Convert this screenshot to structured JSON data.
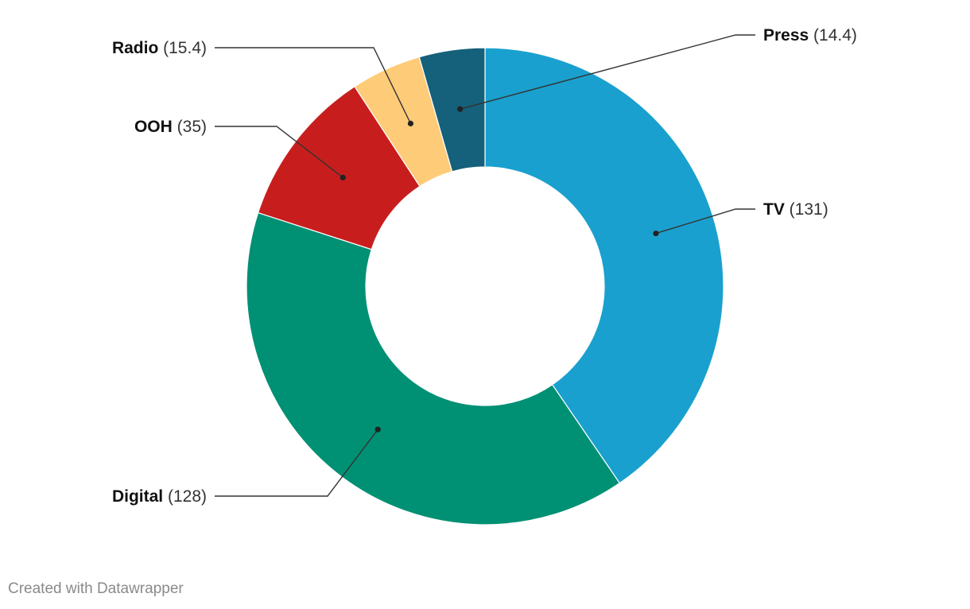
{
  "chart_data": {
    "type": "pie",
    "variant": "donut",
    "title": "",
    "slices": [
      {
        "label": "TV",
        "value": 131,
        "display": "(131)",
        "color": "#1aa0ce"
      },
      {
        "label": "Digital",
        "value": 128,
        "display": "(128)",
        "color": "#009074"
      },
      {
        "label": "OOH",
        "value": 35,
        "display": "(35)",
        "color": "#c71e1d"
      },
      {
        "label": "Radio",
        "value": 15.4,
        "display": "(15.4)",
        "color": "#fecb78"
      },
      {
        "label": "Press",
        "value": 14.4,
        "display": "(14.4)",
        "color": "#15607a"
      }
    ]
  },
  "footer": {
    "credit": "Created with Datawrapper"
  }
}
